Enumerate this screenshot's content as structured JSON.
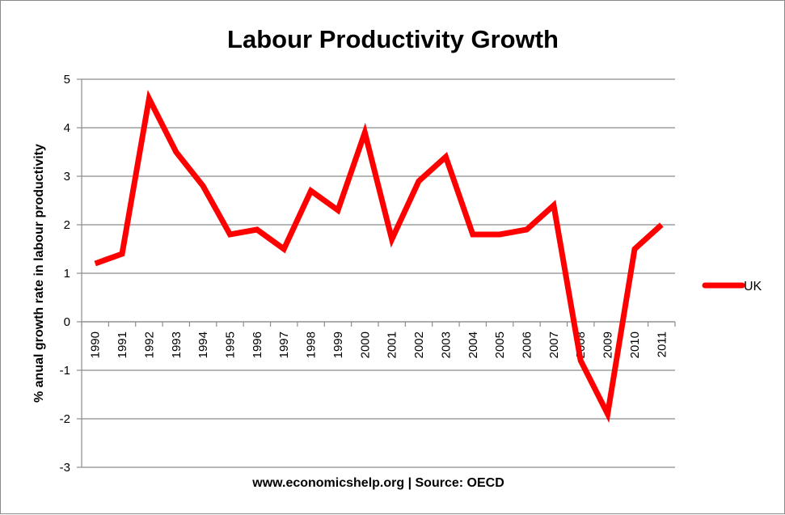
{
  "chart_data": {
    "type": "line",
    "title": "Labour Productivity Growth",
    "xlabel": "www.economicshelp.org | Source: OECD",
    "ylabel": "% anual growth rate in labour productivity",
    "categories": [
      "1990",
      "1991",
      "1992",
      "1993",
      "1994",
      "1995",
      "1996",
      "1997",
      "1998",
      "1999",
      "2000",
      "2001",
      "2002",
      "2003",
      "2004",
      "2005",
      "2006",
      "2007",
      "2008",
      "2009",
      "2010",
      "2011"
    ],
    "series": [
      {
        "name": "UK",
        "color": "#ff0000",
        "values": [
          1.2,
          1.4,
          4.6,
          3.5,
          2.8,
          1.8,
          1.9,
          1.5,
          2.7,
          2.3,
          3.9,
          1.7,
          2.9,
          3.4,
          1.8,
          1.8,
          1.9,
          2.4,
          -0.8,
          -1.9,
          1.5,
          2.0
        ]
      }
    ],
    "ylim": [
      -3,
      5
    ],
    "yticks": [
      "5",
      "4",
      "3",
      "2",
      "1",
      "0",
      "-1",
      "-2",
      "-3"
    ],
    "grid": true,
    "legend": "right"
  }
}
